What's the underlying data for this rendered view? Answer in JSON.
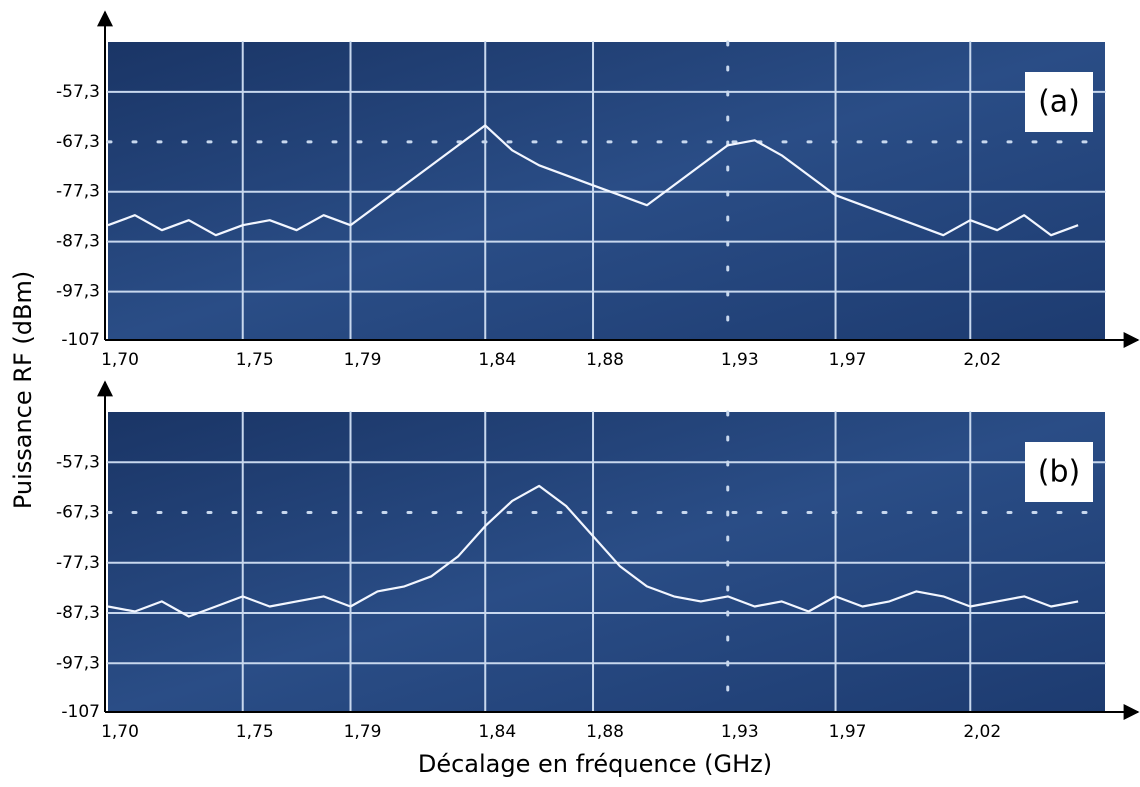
{
  "chart_data": [
    {
      "type": "line",
      "label": "(a)",
      "ylabel": "Puissance RF (dBm)",
      "x": [
        1.7,
        1.71,
        1.72,
        1.73,
        1.74,
        1.75,
        1.76,
        1.77,
        1.78,
        1.79,
        1.8,
        1.81,
        1.82,
        1.83,
        1.84,
        1.85,
        1.86,
        1.87,
        1.88,
        1.89,
        1.9,
        1.91,
        1.92,
        1.93,
        1.94,
        1.95,
        1.96,
        1.97,
        1.98,
        1.99,
        2.0,
        2.01,
        2.02,
        2.03,
        2.04,
        2.05,
        2.06
      ],
      "values": [
        -84,
        -82,
        -85,
        -83,
        -86,
        -84,
        -83,
        -85,
        -82,
        -84,
        -80,
        -76,
        -72,
        -68,
        -64,
        -69,
        -72,
        -74,
        -76,
        -78,
        -80,
        -76,
        -72,
        -68,
        -67,
        -70,
        -74,
        -78,
        -80,
        -82,
        -84,
        -86,
        -83,
        -85,
        -82,
        -86,
        -84
      ],
      "color": "#f2f6ff",
      "xlim": [
        1.7,
        2.07
      ],
      "ylim": [
        -107,
        -47.3
      ],
      "xticks": [
        {
          "value": 1.7,
          "label": "1,70"
        },
        {
          "value": 1.75,
          "label": "1,75"
        },
        {
          "value": 1.79,
          "label": "1,79"
        },
        {
          "value": 1.84,
          "label": "1,84"
        },
        {
          "value": 1.88,
          "label": "1,88"
        },
        {
          "value": 1.93,
          "label": "1,93"
        },
        {
          "value": 1.97,
          "label": "1,97"
        },
        {
          "value": 2.02,
          "label": "2,02"
        }
      ],
      "yticks": [
        {
          "value": -57.3,
          "label": "-57,3"
        },
        {
          "value": -67.3,
          "label": "-67,3"
        },
        {
          "value": -77.3,
          "label": "-77,3"
        },
        {
          "value": -87.3,
          "label": "-87,3"
        },
        {
          "value": -97.3,
          "label": "-97,3"
        },
        -107
      ],
      "grid": true
    },
    {
      "type": "line",
      "label": "(b)",
      "xlabel": "Décalage en fréquence (GHz)",
      "x": [
        1.7,
        1.71,
        1.72,
        1.73,
        1.74,
        1.75,
        1.76,
        1.77,
        1.78,
        1.79,
        1.8,
        1.81,
        1.82,
        1.83,
        1.84,
        1.85,
        1.86,
        1.87,
        1.88,
        1.89,
        1.9,
        1.91,
        1.92,
        1.93,
        1.94,
        1.95,
        1.96,
        1.97,
        1.98,
        1.99,
        2.0,
        2.01,
        2.02,
        2.03,
        2.04,
        2.05,
        2.06
      ],
      "values": [
        -86,
        -87,
        -85,
        -88,
        -86,
        -84,
        -86,
        -85,
        -84,
        -86,
        -83,
        -82,
        -80,
        -76,
        -70,
        -65,
        -62,
        -66,
        -72,
        -78,
        -82,
        -84,
        -85,
        -84,
        -86,
        -85,
        -87,
        -84,
        -86,
        -85,
        -83,
        -84,
        -86,
        -85,
        -84,
        -86,
        -85
      ],
      "color": "#f2f6ff",
      "xlim": [
        1.7,
        2.07
      ],
      "ylim": [
        -107,
        -47.3
      ],
      "xticks": [
        {
          "value": 1.7,
          "label": "1,70"
        },
        {
          "value": 1.75,
          "label": "1,75"
        },
        {
          "value": 1.79,
          "label": "1,79"
        },
        {
          "value": 1.84,
          "label": "1,84"
        },
        {
          "value": 1.88,
          "label": "1,88"
        },
        {
          "value": 1.93,
          "label": "1,93"
        },
        {
          "value": 1.97,
          "label": "1,97"
        },
        {
          "value": 2.02,
          "label": "2,02"
        }
      ],
      "yticks": [
        {
          "value": -57.3,
          "label": "-57,3"
        },
        {
          "value": -67.3,
          "label": "-67,3"
        },
        {
          "value": -77.3,
          "label": "-77,3"
        },
        {
          "value": -87.3,
          "label": "-87,3"
        },
        {
          "value": -97.3,
          "label": "-97,3"
        },
        -107
      ],
      "grid": true
    }
  ]
}
